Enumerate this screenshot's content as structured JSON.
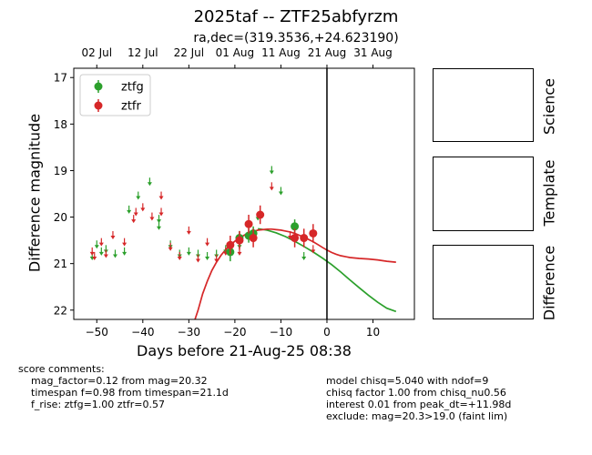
{
  "header": {
    "title": "2025taf -- ZTF25abfyrzm",
    "subtitle": "ra,dec=(319.3536,+24.623190)"
  },
  "panels": {
    "science": "Science",
    "template": "Template",
    "difference": "Difference"
  },
  "score_comments": {
    "heading": "score comments:",
    "lines": [
      "mag_factor=0.12 from mag=20.32",
      "timespan f=0.98 from timespan=21.1d",
      "f_rise: ztfg=1.00 ztfr=0.57"
    ]
  },
  "model_comments": {
    "lines": [
      "model chisq=5.040 with ndof=9",
      "chisq factor 1.00 from chisq_nu0.56",
      "interest 0.01 from peak_dt=+11.98d",
      "exclude: mag=20.3>19.0 (faint lim)"
    ]
  },
  "chart_data": {
    "type": "scatter",
    "xlabel": "Days before 21-Aug-25 08:38",
    "ylabel": "Difference magnitude",
    "xlim": [
      -55,
      19
    ],
    "ylim": [
      22.2,
      16.8
    ],
    "y_inverted": true,
    "xticks": [
      -50,
      -40,
      -30,
      -20,
      -10,
      0,
      10
    ],
    "xtick_labels": [
      "−50",
      "−40",
      "−30",
      "−20",
      "−10",
      "0",
      "10"
    ],
    "yticks": [
      17,
      18,
      19,
      20,
      21,
      22
    ],
    "ytick_labels": [
      "17",
      "18",
      "19",
      "20",
      "21",
      "22"
    ],
    "top_axis": {
      "ticks": [
        -50,
        -40,
        -30,
        -20,
        -10,
        0,
        10
      ],
      "labels": [
        "02 Jul",
        "12 Jul",
        "22 Jul",
        "01 Aug",
        "11 Aug",
        "21 Aug",
        "31 Aug"
      ]
    },
    "reference_line_x": 0,
    "legend": {
      "position": "top-left",
      "entries": [
        "ztfg",
        "ztfr"
      ]
    },
    "colors": {
      "ztfg": "#2ca02c",
      "ztfr": "#d62728"
    },
    "series": [
      {
        "name": "ztfg",
        "detections": [
          {
            "x": -21,
            "y": 20.75,
            "err": 0.2
          },
          {
            "x": -19,
            "y": 20.45,
            "err": 0.15
          },
          {
            "x": -17,
            "y": 20.4,
            "err": 0.15
          },
          {
            "x": -16,
            "y": 20.35,
            "err": 0.15
          },
          {
            "x": -7,
            "y": 20.2,
            "err": 0.15
          }
        ],
        "upper_limits": [
          {
            "x": -51,
            "y": 20.85
          },
          {
            "x": -50,
            "y": 20.6
          },
          {
            "x": -49,
            "y": 20.75
          },
          {
            "x": -48,
            "y": 20.7
          },
          {
            "x": -46,
            "y": 20.8
          },
          {
            "x": -44,
            "y": 20.75
          },
          {
            "x": -43,
            "y": 19.85
          },
          {
            "x": -41,
            "y": 19.55
          },
          {
            "x": -38.5,
            "y": 19.25
          },
          {
            "x": -36.5,
            "y": 20.05
          },
          {
            "x": -36.5,
            "y": 20.2
          },
          {
            "x": -34,
            "y": 20.6
          },
          {
            "x": -32,
            "y": 20.8
          },
          {
            "x": -30,
            "y": 20.75
          },
          {
            "x": -28,
            "y": 20.8
          },
          {
            "x": -26,
            "y": 20.85
          },
          {
            "x": -24,
            "y": 20.8
          },
          {
            "x": -22,
            "y": 20.7
          },
          {
            "x": -19,
            "y": 20.6
          },
          {
            "x": -15,
            "y": 20.0
          },
          {
            "x": -12,
            "y": 19.0
          },
          {
            "x": -10,
            "y": 19.45
          },
          {
            "x": -5,
            "y": 20.85
          }
        ],
        "model": {
          "x": [
            -15,
            -13,
            -11,
            -9,
            -7,
            -5,
            -3,
            -1,
            1,
            3,
            5,
            7,
            9,
            11,
            13,
            15
          ],
          "y": [
            20.25,
            20.28,
            20.34,
            20.42,
            20.52,
            20.63,
            20.75,
            20.88,
            21.02,
            21.18,
            21.35,
            21.52,
            21.68,
            21.83,
            21.96,
            22.03
          ]
        }
      },
      {
        "name": "ztfr",
        "detections": [
          {
            "x": -21,
            "y": 20.6,
            "err": 0.2
          },
          {
            "x": -19,
            "y": 20.5,
            "err": 0.2
          },
          {
            "x": -17,
            "y": 20.15,
            "err": 0.2
          },
          {
            "x": -16,
            "y": 20.45,
            "err": 0.2
          },
          {
            "x": -14.5,
            "y": 19.95,
            "err": 0.2
          },
          {
            "x": -7,
            "y": 20.45,
            "err": 0.2
          },
          {
            "x": -5,
            "y": 20.45,
            "err": 0.2
          },
          {
            "x": -3,
            "y": 20.35,
            "err": 0.2
          }
        ],
        "upper_limits": [
          {
            "x": -51,
            "y": 20.75
          },
          {
            "x": -50.5,
            "y": 20.85
          },
          {
            "x": -49,
            "y": 20.55
          },
          {
            "x": -48,
            "y": 20.8
          },
          {
            "x": -46.5,
            "y": 20.4
          },
          {
            "x": -44,
            "y": 20.55
          },
          {
            "x": -42,
            "y": 20.05
          },
          {
            "x": -41.5,
            "y": 19.9
          },
          {
            "x": -40,
            "y": 19.8
          },
          {
            "x": -38,
            "y": 20.0
          },
          {
            "x": -36,
            "y": 19.9
          },
          {
            "x": -36,
            "y": 19.55
          },
          {
            "x": -34,
            "y": 20.65
          },
          {
            "x": -32,
            "y": 20.85
          },
          {
            "x": -30,
            "y": 20.3
          },
          {
            "x": -28,
            "y": 20.9
          },
          {
            "x": -26,
            "y": 20.55
          },
          {
            "x": -24,
            "y": 20.9
          },
          {
            "x": -22,
            "y": 20.75
          },
          {
            "x": -19,
            "y": 20.75
          },
          {
            "x": -16,
            "y": 20.45
          },
          {
            "x": -12,
            "y": 19.35
          },
          {
            "x": -8,
            "y": 20.4
          },
          {
            "x": -3,
            "y": 20.7
          }
        ],
        "model": {
          "x": [
            -29,
            -28,
            -27,
            -26,
            -25,
            -24,
            -23,
            -22,
            -21,
            -20,
            -19,
            -18,
            -17,
            -16,
            -15,
            -14,
            -13,
            -12,
            -11,
            -10,
            -9,
            -8,
            -7,
            -6,
            -5,
            -4,
            -3,
            -2,
            -1,
            0,
            1,
            2,
            3,
            5,
            7,
            9,
            11,
            13,
            15
          ],
          "y": [
            22.3,
            22.0,
            21.65,
            21.38,
            21.15,
            20.97,
            20.82,
            20.7,
            20.6,
            20.52,
            20.45,
            20.39,
            20.34,
            20.31,
            20.28,
            20.27,
            20.26,
            20.26,
            20.27,
            20.28,
            20.3,
            20.32,
            20.35,
            20.39,
            20.43,
            20.48,
            20.53,
            20.59,
            20.65,
            20.71,
            20.76,
            20.8,
            20.83,
            20.87,
            20.89,
            20.9,
            20.92,
            20.95,
            20.97
          ]
        }
      }
    ]
  }
}
